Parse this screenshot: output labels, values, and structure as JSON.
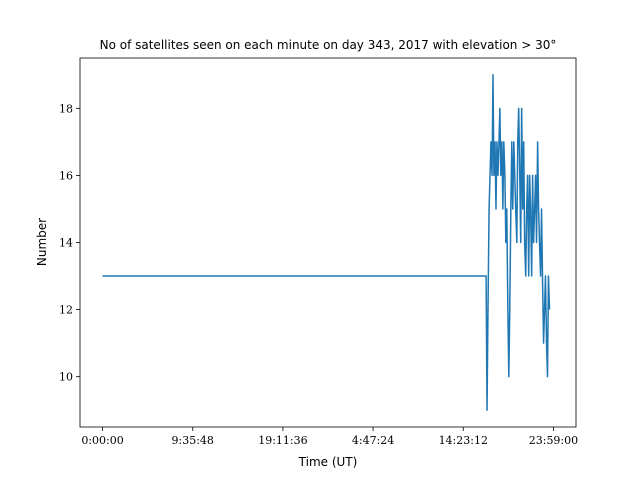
{
  "chart_data": {
    "type": "line",
    "title": "No of satellites seen on each minute on day 343, 2017 with elevation > 30°",
    "xlabel": "Time (UT)",
    "ylabel": "Number",
    "x": [
      0,
      2449,
      2455,
      2461,
      2468,
      2474,
      2480,
      2487,
      2493,
      2499,
      2506,
      2512,
      2518,
      2525,
      2531,
      2537,
      2543,
      2550,
      2556,
      2562,
      2569,
      2575,
      2581,
      2588,
      2594,
      2600,
      2607,
      2613,
      2619,
      2626,
      2632,
      2638,
      2645,
      2651,
      2657,
      2664,
      2670,
      2676,
      2683,
      2689,
      2695,
      2702,
      2708,
      2714,
      2721,
      2727,
      2733,
      2740,
      2746,
      2752,
      2759,
      2765,
      2771,
      2778,
      2784,
      2790,
      2797,
      2803,
      2809,
      2816,
      2822,
      2828,
      2835,
      2841,
      2847,
      2854
    ],
    "values": [
      13,
      13,
      9,
      12,
      15,
      16,
      17,
      16,
      19,
      16,
      17,
      15,
      17,
      16,
      17,
      18,
      16,
      17,
      15,
      17,
      16,
      14,
      15,
      12,
      10,
      12,
      15,
      17,
      15,
      17,
      16,
      15,
      14,
      17,
      18,
      16,
      14,
      18,
      15,
      17,
      14,
      13,
      15,
      16,
      13,
      16,
      15,
      13,
      16,
      14,
      15,
      16,
      14,
      17,
      15,
      14,
      13,
      15,
      13,
      11,
      12,
      13,
      11,
      10,
      13,
      12
    ],
    "color": "#1f77b4",
    "xlim": [
      -144,
      3023
    ],
    "ylim": [
      8.5,
      19.5
    ],
    "xticks": [
      {
        "value": 0,
        "label": "0:00:00"
      },
      {
        "value": 575.8,
        "label": "9:35:48"
      },
      {
        "value": 1151.6,
        "label": "19:11:36"
      },
      {
        "value": 1727.4,
        "label": "4:47:24"
      },
      {
        "value": 2303.2,
        "label": "14:23:12"
      },
      {
        "value": 2879,
        "label": "23:59:00"
      }
    ],
    "yticks": [
      10,
      12,
      14,
      16,
      18
    ]
  }
}
